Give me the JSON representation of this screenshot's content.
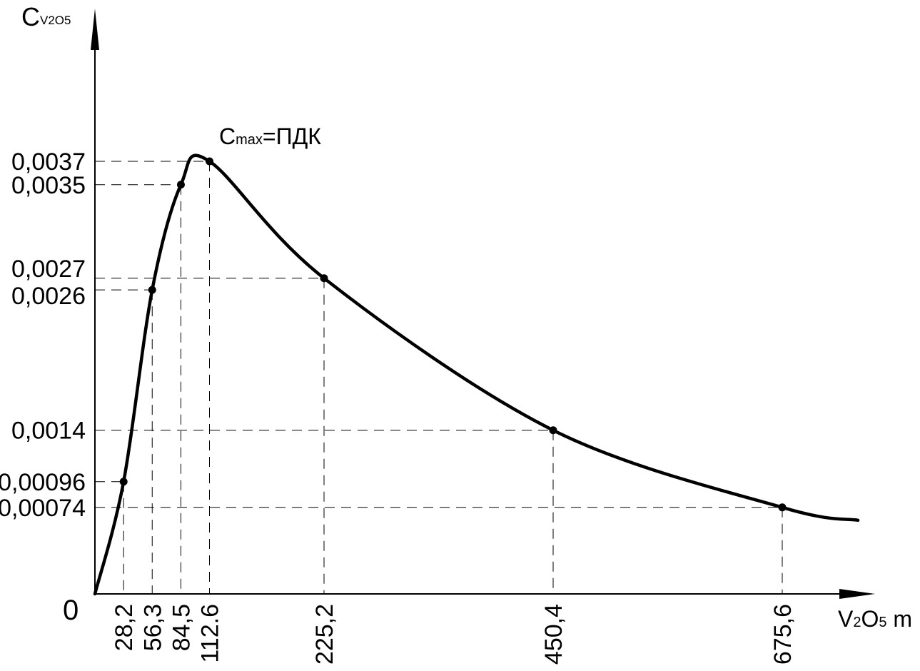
{
  "chart_data": {
    "type": "line",
    "x_axis_label": {
      "base": "V",
      "sub1": "2",
      "mid": "O",
      "sub2": "5",
      "tail": " m"
    },
    "y_axis_label": {
      "base": "C",
      "sub": "V2O5"
    },
    "annotation": {
      "base": "C",
      "sub": "max",
      "tail": "=ПДК"
    },
    "origin_label": "0",
    "series": [
      {
        "points": [
          {
            "x": 0,
            "y": 0,
            "x_label": "",
            "y_label": ""
          },
          {
            "x": 28.2,
            "y": 0.00096,
            "x_label": "28,2",
            "y_label": "0,00096"
          },
          {
            "x": 56.3,
            "y": 0.0026,
            "x_label": "56,3",
            "y_label": "0,0026"
          },
          {
            "x": 84.5,
            "y": 0.0035,
            "x_label": "84,5",
            "y_label": "0,0035"
          },
          {
            "x": 112.6,
            "y": 0.0037,
            "x_label": "112.6",
            "y_label": "0,0037"
          },
          {
            "x": 225.2,
            "y": 0.0027,
            "x_label": "225,2",
            "y_label": "0,0027"
          },
          {
            "x": 450.4,
            "y": 0.0014,
            "x_label": "450,4",
            "y_label": "0,0014"
          },
          {
            "x": 675.6,
            "y": 0.00074,
            "x_label": "675,6",
            "y_label": "0,00074"
          }
        ]
      }
    ],
    "xlim": [
      0,
      750
    ],
    "ylim": [
      0,
      0.0052
    ],
    "grid": false
  }
}
